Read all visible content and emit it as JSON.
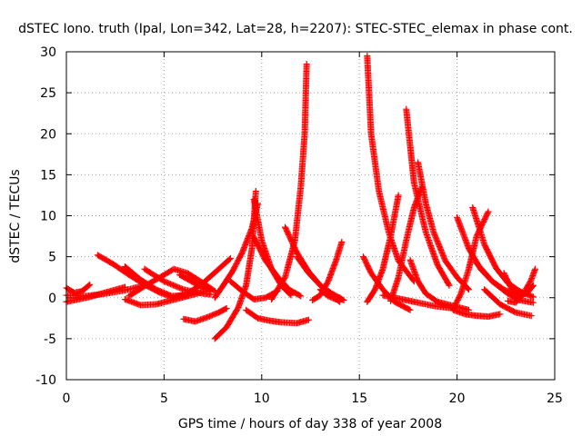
{
  "chart_data": {
    "type": "scatter",
    "title": "dSTEC Iono. truth (Ipal, Lon=342, Lat=28, h=2207): STEC-STEC_elemax in phase cont.",
    "xlabel": "GPS time / hours of day 338 of year 2008",
    "ylabel": "dSTEC  / TECUs",
    "xlim": [
      0,
      25
    ],
    "ylim": [
      -10,
      30
    ],
    "xticks": [
      0,
      5,
      10,
      15,
      20,
      25
    ],
    "yticks": [
      -10,
      -5,
      0,
      5,
      10,
      15,
      20,
      25,
      30
    ],
    "grid": true,
    "marker": "+",
    "color": "#ff0000",
    "series": [
      {
        "x": [
          0.0,
          0.4,
          0.8,
          1.2
        ],
        "y": [
          1.2,
          0.6,
          0.8,
          1.6
        ]
      },
      {
        "x": [
          0.0,
          0.6,
          1.2,
          1.8,
          2.4,
          3.0
        ],
        "y": [
          -0.5,
          -0.2,
          0.1,
          0.5,
          0.9,
          1.3
        ]
      },
      {
        "x": [
          0.0,
          1.0,
          2.0,
          3.0,
          4.0
        ],
        "y": [
          0.3,
          0.2,
          0.5,
          0.9,
          1.5
        ]
      },
      {
        "x": [
          1.6,
          2.4,
          3.2,
          4.0,
          4.8,
          5.4
        ],
        "y": [
          5.2,
          4.1,
          2.8,
          1.6,
          0.6,
          0.1
        ]
      },
      {
        "x": [
          3.0,
          3.8,
          4.6,
          5.4,
          6.2
        ],
        "y": [
          3.8,
          2.2,
          1.0,
          0.2,
          0.3
        ]
      },
      {
        "x": [
          3.0,
          3.8,
          4.6,
          5.4,
          6.2,
          7.0
        ],
        "y": [
          -0.2,
          -0.9,
          -0.8,
          -0.3,
          0.2,
          0.7
        ]
      },
      {
        "x": [
          3.2,
          4.0,
          4.8,
          5.5,
          6.2,
          7.0,
          7.6
        ],
        "y": [
          0.2,
          1.4,
          2.5,
          3.5,
          3.0,
          1.8,
          0.8
        ]
      },
      {
        "x": [
          4.0,
          5.0,
          6.0,
          7.0,
          7.4
        ],
        "y": [
          3.5,
          2.0,
          1.0,
          0.5,
          0.4
        ]
      },
      {
        "x": [
          5.4,
          6.2,
          7.0,
          7.8,
          8.4
        ],
        "y": [
          0.0,
          0.5,
          1.8,
          3.5,
          4.8
        ]
      },
      {
        "x": [
          5.8,
          6.4,
          7.0,
          7.4
        ],
        "y": [
          2.8,
          2.0,
          1.2,
          0.8
        ]
      },
      {
        "x": [
          6.0,
          6.6,
          7.2,
          7.8,
          8.2
        ],
        "y": [
          -2.6,
          -2.9,
          -2.4,
          -1.8,
          -1.3
        ]
      },
      {
        "x": [
          7.6,
          8.2,
          8.8,
          9.2,
          9.5,
          9.7
        ],
        "y": [
          -5.0,
          -3.6,
          -1.2,
          1.5,
          6.0,
          13.0
        ]
      },
      {
        "x": [
          7.6,
          8.0,
          8.5,
          9.0,
          9.5,
          9.8
        ],
        "y": [
          0.0,
          1.4,
          3.2,
          5.5,
          8.5,
          11.5
        ]
      },
      {
        "x": [
          8.4,
          9.0,
          9.6,
          10.2,
          10.8
        ],
        "y": [
          2.0,
          0.8,
          -0.2,
          0.0,
          0.8
        ]
      },
      {
        "x": [
          9.2,
          9.8,
          10.4,
          11.0,
          11.8,
          12.4
        ],
        "y": [
          -1.5,
          -2.5,
          -2.8,
          -3.0,
          -3.1,
          -2.7
        ]
      },
      {
        "x": [
          9.6,
          10.0,
          10.5,
          11.0,
          11.5
        ],
        "y": [
          12.0,
          7.0,
          3.5,
          1.5,
          0.3
        ]
      },
      {
        "x": [
          9.6,
          10.2,
          10.8,
          11.4,
          12.0
        ],
        "y": [
          7.4,
          4.5,
          2.6,
          1.0,
          0.2
        ]
      },
      {
        "x": [
          10.5,
          11.2,
          11.7,
          12.0,
          12.2,
          12.3
        ],
        "y": [
          -0.2,
          2.5,
          7.0,
          13.5,
          20.0,
          28.5
        ]
      },
      {
        "x": [
          11.2,
          11.8,
          12.4,
          13.0,
          13.6,
          14.0
        ],
        "y": [
          8.6,
          5.5,
          3.2,
          1.5,
          0.2,
          -0.5
        ]
      },
      {
        "x": [
          11.8,
          12.4,
          13.0,
          13.6,
          14.2
        ],
        "y": [
          5.0,
          3.0,
          1.5,
          0.5,
          -0.3
        ]
      },
      {
        "x": [
          12.6,
          13.0,
          13.4,
          13.8,
          14.1
        ],
        "y": [
          -0.3,
          0.3,
          2.0,
          4.5,
          6.8
        ]
      },
      {
        "x": [
          13.0,
          13.4,
          13.8,
          14.0
        ],
        "y": [
          1.0,
          0.2,
          -0.2,
          0.0
        ]
      },
      {
        "x": [
          15.2,
          15.6,
          16.2,
          16.8,
          17.6
        ],
        "y": [
          5.0,
          3.0,
          1.0,
          -0.5,
          -1.5
        ]
      },
      {
        "x": [
          15.4,
          15.6,
          16.0,
          16.5,
          17.0,
          17.8
        ],
        "y": [
          29.5,
          20.0,
          13.0,
          8.0,
          4.5,
          2.0
        ]
      },
      {
        "x": [
          15.4,
          15.8,
          16.2,
          16.6,
          17.0
        ],
        "y": [
          -0.5,
          1.0,
          3.5,
          7.5,
          12.5
        ]
      },
      {
        "x": [
          16.2,
          16.8,
          17.4,
          18.0,
          18.8,
          19.8
        ],
        "y": [
          0.3,
          0.0,
          -0.3,
          -0.6,
          -1.0,
          -1.3
        ]
      },
      {
        "x": [
          16.6,
          17.0,
          17.4,
          17.8,
          18.2
        ],
        "y": [
          -0.4,
          2.5,
          7.0,
          11.0,
          13.5
        ]
      },
      {
        "x": [
          17.4,
          17.8,
          18.4,
          19.0,
          19.6
        ],
        "y": [
          23.0,
          14.0,
          8.0,
          4.0,
          1.5
        ]
      },
      {
        "x": [
          17.6,
          18.0,
          18.4,
          19.0,
          19.8,
          20.6
        ],
        "y": [
          4.6,
          2.0,
          0.5,
          -0.5,
          -1.0,
          -1.5
        ]
      },
      {
        "x": [
          18.0,
          18.4,
          18.8,
          19.4,
          20.0,
          20.6
        ],
        "y": [
          16.5,
          11.5,
          8.0,
          4.5,
          2.5,
          1.0
        ]
      },
      {
        "x": [
          19.8,
          20.4,
          21.0,
          21.6,
          22.2
        ],
        "y": [
          -1.5,
          -2.0,
          -2.2,
          -2.3,
          -2.0
        ]
      },
      {
        "x": [
          19.8,
          20.2,
          20.6,
          21.0,
          21.6
        ],
        "y": [
          -1.4,
          0.5,
          3.5,
          7.5,
          10.5
        ]
      },
      {
        "x": [
          20.0,
          20.6,
          21.2,
          21.8,
          22.4,
          23.0
        ],
        "y": [
          9.8,
          6.0,
          3.5,
          2.0,
          1.0,
          0.3
        ]
      },
      {
        "x": [
          20.8,
          21.4,
          22.0,
          22.6,
          23.2,
          23.9
        ],
        "y": [
          11.0,
          6.5,
          3.6,
          1.8,
          0.8,
          0.1
        ]
      },
      {
        "x": [
          21.0,
          21.8,
          22.6,
          23.2,
          23.9
        ],
        "y": [
          4.2,
          2.0,
          0.5,
          -0.3,
          -0.6
        ]
      },
      {
        "x": [
          21.4,
          22.2,
          23.0,
          23.8
        ],
        "y": [
          1.0,
          -0.8,
          -1.8,
          -2.2
        ]
      },
      {
        "x": [
          22.4,
          22.8,
          23.2,
          23.6,
          23.9
        ],
        "y": [
          3.0,
          1.0,
          0.2,
          0.6,
          1.5
        ]
      },
      {
        "x": [
          22.6,
          23.0,
          23.4,
          23.8,
          24.0
        ],
        "y": [
          -0.4,
          -0.6,
          0.5,
          2.2,
          3.5
        ]
      }
    ]
  }
}
